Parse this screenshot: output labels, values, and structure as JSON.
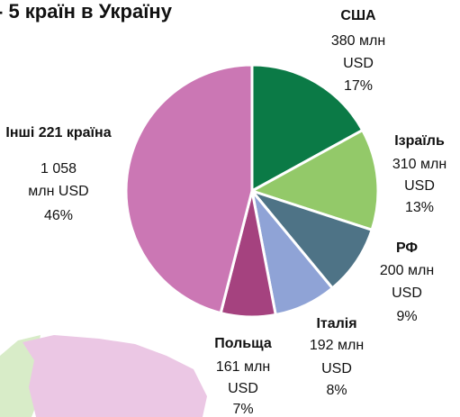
{
  "chart_data": {
    "type": "pie",
    "title": "- 5 країн в Україну",
    "categories": [
      "США",
      "Ізраїль",
      "РФ",
      "Італія",
      "Польща",
      "Інші 221 країна"
    ],
    "values": [
      17,
      13,
      9,
      8,
      7,
      46
    ],
    "value_labels": [
      "17%",
      "13%",
      "9%",
      "8%",
      "7%",
      "46%"
    ],
    "amount_labels": [
      [
        "380 млн",
        "USD"
      ],
      [
        "310 млн",
        "USD"
      ],
      [
        "200 млн",
        "USD"
      ],
      [
        "192 млн",
        "USD"
      ],
      [
        "161 млн",
        "USD"
      ],
      [
        "1 058",
        "млн USD"
      ]
    ],
    "colors": [
      "#0b7a46",
      "#93c969",
      "#4e7386",
      "#8fa3d6",
      "#a5427f",
      "#cb77b4"
    ]
  }
}
